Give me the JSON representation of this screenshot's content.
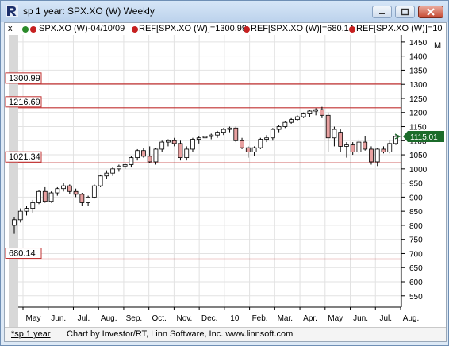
{
  "window": {
    "title": "sp 1 year: SPX.XO (W) Weekly",
    "minimize_icon": "minimize-icon",
    "maximize_icon": "maximize-icon",
    "close_icon": "close-icon"
  },
  "legend": {
    "close_symbol": "x",
    "series_label": "SPX.XO (W)-04/10/09",
    "ref1_label": "REF[SPX.XO (W)]=1300.99",
    "ref2_label": "REF[SPX.XO (W)]=680.14",
    "ref3_label": "REF[SPX.XO (W)]=10",
    "m_label": "M"
  },
  "footer": {
    "tab_label": "*sp 1 year",
    "credit": "Chart by Investor/RT, Linn Software, Inc. www.linnsoft.com"
  },
  "colors": {
    "up_candle": "#ffffff",
    "down_candle": "#e8a0a0",
    "ref_line": "#c03030",
    "price_tag": "#1b6b2a"
  },
  "chart_data": {
    "type": "candlestick",
    "x_labels": [
      "May",
      "Jun.",
      "Jul.",
      "Aug.",
      "Sep.",
      "Oct.",
      "Nov.",
      "Dec.",
      "10",
      "Feb.",
      "Mar.",
      "Apr.",
      "May",
      "Jun.",
      "Jul.",
      "Aug."
    ],
    "y_ticks": [
      550,
      600,
      650,
      700,
      750,
      800,
      850,
      900,
      950,
      1000,
      1050,
      1100,
      1150,
      1200,
      1250,
      1300,
      1350,
      1400,
      1450
    ],
    "ylim": [
      510,
      1475
    ],
    "reference_lines": [
      {
        "label": "1300.99",
        "value": 1300.99
      },
      {
        "label": "1216.69",
        "value": 1216.69
      },
      {
        "label": "1021.34",
        "value": 1021.34
      },
      {
        "label": "680.14",
        "value": 680.14
      }
    ],
    "last_price": {
      "label": "1115.01",
      "value": 1115.01
    },
    "candles": [
      {
        "o": 800,
        "h": 830,
        "l": 770,
        "c": 820
      },
      {
        "o": 820,
        "h": 860,
        "l": 810,
        "c": 850
      },
      {
        "o": 850,
        "h": 870,
        "l": 835,
        "c": 860
      },
      {
        "o": 860,
        "h": 890,
        "l": 845,
        "c": 880
      },
      {
        "o": 880,
        "h": 925,
        "l": 875,
        "c": 920
      },
      {
        "o": 920,
        "h": 935,
        "l": 880,
        "c": 885
      },
      {
        "o": 885,
        "h": 920,
        "l": 880,
        "c": 915
      },
      {
        "o": 915,
        "h": 935,
        "l": 905,
        "c": 930
      },
      {
        "o": 930,
        "h": 950,
        "l": 920,
        "c": 940
      },
      {
        "o": 940,
        "h": 945,
        "l": 910,
        "c": 920
      },
      {
        "o": 920,
        "h": 930,
        "l": 900,
        "c": 910
      },
      {
        "o": 910,
        "h": 915,
        "l": 870,
        "c": 880
      },
      {
        "o": 880,
        "h": 905,
        "l": 870,
        "c": 900
      },
      {
        "o": 900,
        "h": 945,
        "l": 895,
        "c": 940
      },
      {
        "o": 940,
        "h": 980,
        "l": 935,
        "c": 975
      },
      {
        "o": 975,
        "h": 995,
        "l": 965,
        "c": 985
      },
      {
        "o": 985,
        "h": 1005,
        "l": 975,
        "c": 1000
      },
      {
        "o": 1000,
        "h": 1015,
        "l": 990,
        "c": 1010
      },
      {
        "o": 1010,
        "h": 1020,
        "l": 1000,
        "c": 1015
      },
      {
        "o": 1015,
        "h": 1045,
        "l": 1005,
        "c": 1040
      },
      {
        "o": 1040,
        "h": 1070,
        "l": 1030,
        "c": 1065
      },
      {
        "o": 1065,
        "h": 1075,
        "l": 1040,
        "c": 1045
      },
      {
        "o": 1045,
        "h": 1080,
        "l": 1020,
        "c": 1025
      },
      {
        "o": 1025,
        "h": 1075,
        "l": 1015,
        "c": 1070
      },
      {
        "o": 1070,
        "h": 1100,
        "l": 1060,
        "c": 1095
      },
      {
        "o": 1095,
        "h": 1105,
        "l": 1080,
        "c": 1100
      },
      {
        "o": 1100,
        "h": 1110,
        "l": 1080,
        "c": 1090
      },
      {
        "o": 1090,
        "h": 1100,
        "l": 1030,
        "c": 1040
      },
      {
        "o": 1040,
        "h": 1080,
        "l": 1030,
        "c": 1070
      },
      {
        "o": 1070,
        "h": 1110,
        "l": 1060,
        "c": 1105
      },
      {
        "o": 1105,
        "h": 1115,
        "l": 1090,
        "c": 1110
      },
      {
        "o": 1110,
        "h": 1120,
        "l": 1100,
        "c": 1115
      },
      {
        "o": 1115,
        "h": 1125,
        "l": 1105,
        "c": 1120
      },
      {
        "o": 1120,
        "h": 1135,
        "l": 1110,
        "c": 1130
      },
      {
        "o": 1130,
        "h": 1145,
        "l": 1120,
        "c": 1140
      },
      {
        "o": 1140,
        "h": 1150,
        "l": 1130,
        "c": 1145
      },
      {
        "o": 1145,
        "h": 1150,
        "l": 1095,
        "c": 1100
      },
      {
        "o": 1100,
        "h": 1110,
        "l": 1070,
        "c": 1075
      },
      {
        "o": 1075,
        "h": 1080,
        "l": 1040,
        "c": 1060
      },
      {
        "o": 1060,
        "h": 1080,
        "l": 1045,
        "c": 1075
      },
      {
        "o": 1075,
        "h": 1110,
        "l": 1070,
        "c": 1105
      },
      {
        "o": 1105,
        "h": 1120,
        "l": 1095,
        "c": 1110
      },
      {
        "o": 1110,
        "h": 1145,
        "l": 1100,
        "c": 1140
      },
      {
        "o": 1140,
        "h": 1155,
        "l": 1130,
        "c": 1150
      },
      {
        "o": 1150,
        "h": 1170,
        "l": 1145,
        "c": 1165
      },
      {
        "o": 1165,
        "h": 1180,
        "l": 1160,
        "c": 1175
      },
      {
        "o": 1175,
        "h": 1190,
        "l": 1170,
        "c": 1185
      },
      {
        "o": 1185,
        "h": 1200,
        "l": 1180,
        "c": 1195
      },
      {
        "o": 1195,
        "h": 1210,
        "l": 1185,
        "c": 1205
      },
      {
        "o": 1205,
        "h": 1215,
        "l": 1190,
        "c": 1210
      },
      {
        "o": 1210,
        "h": 1220,
        "l": 1180,
        "c": 1190
      },
      {
        "o": 1190,
        "h": 1200,
        "l": 1060,
        "c": 1110
      },
      {
        "o": 1110,
        "h": 1150,
        "l": 1080,
        "c": 1140
      },
      {
        "o": 1130,
        "h": 1140,
        "l": 1060,
        "c": 1080
      },
      {
        "o": 1080,
        "h": 1095,
        "l": 1040,
        "c": 1085
      },
      {
        "o": 1085,
        "h": 1095,
        "l": 1050,
        "c": 1060
      },
      {
        "o": 1060,
        "h": 1105,
        "l": 1055,
        "c": 1095
      },
      {
        "o": 1095,
        "h": 1115,
        "l": 1065,
        "c": 1070
      },
      {
        "o": 1070,
        "h": 1080,
        "l": 1015,
        "c": 1025
      },
      {
        "o": 1025,
        "h": 1075,
        "l": 1010,
        "c": 1070
      },
      {
        "o": 1070,
        "h": 1080,
        "l": 1055,
        "c": 1060
      },
      {
        "o": 1060,
        "h": 1100,
        "l": 1055,
        "c": 1090
      },
      {
        "o": 1090,
        "h": 1120,
        "l": 1085,
        "c": 1115
      }
    ]
  }
}
